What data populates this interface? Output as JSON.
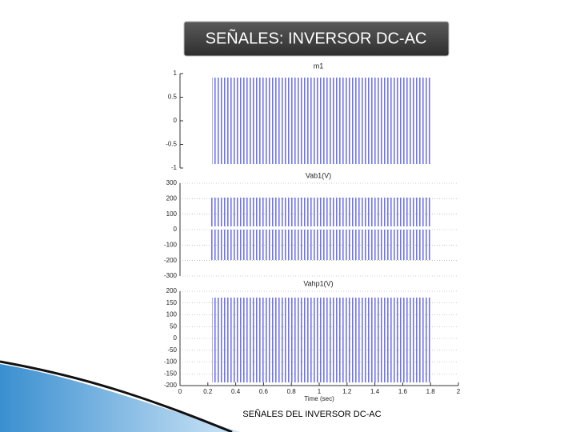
{
  "slide": {
    "title": "SEÑALES: INVERSOR DC-AC",
    "caption": "SEÑALES DEL INVERSOR DC-AC"
  },
  "plots": [
    {
      "title": "m1",
      "ylim": [
        -1,
        1
      ],
      "yticks": [
        -1,
        -0.5,
        0,
        0.5,
        1
      ],
      "grid": false
    },
    {
      "title": "Vab1(V)",
      "ylim": [
        -300,
        300
      ],
      "yticks": [
        -300,
        -200,
        -100,
        0,
        100,
        200,
        300
      ],
      "grid": true
    },
    {
      "title": "Vahp1(V)",
      "ylim": [
        -200,
        200
      ],
      "yticks": [
        -200,
        -150,
        -100,
        -50,
        0,
        50,
        100,
        150,
        200
      ],
      "grid": true
    }
  ],
  "time_axis": {
    "label": "Time (sec)",
    "xlim": [
      0,
      2
    ],
    "xticks": [
      0,
      0.2,
      0.4,
      0.6,
      0.8,
      1,
      1.2,
      1.4,
      1.6,
      1.8,
      2
    ]
  }
}
